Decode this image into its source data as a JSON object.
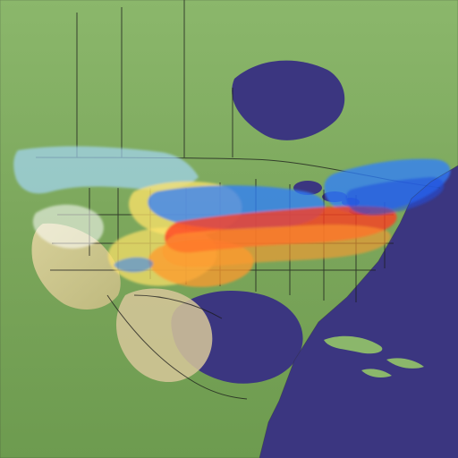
{
  "map": {
    "kind": "weather-snow-precip-overlay",
    "region": "North America",
    "colors": {
      "ocean": "#3b3680",
      "land_low": "#7aa55a",
      "land_mid": "#8fb26c",
      "land_high": "#c8c78e",
      "border": "#1a1a1a"
    },
    "legend": []
  },
  "overlay": {
    "colors": {
      "white": "#ffffff",
      "light_blue": "#a6d8ff",
      "blue": "#2f7dff",
      "dark_blue": "#1d4fe0",
      "yellow": "#ffe36a",
      "orange": "#ff9a2e",
      "red": "#ff3b1f"
    }
  }
}
